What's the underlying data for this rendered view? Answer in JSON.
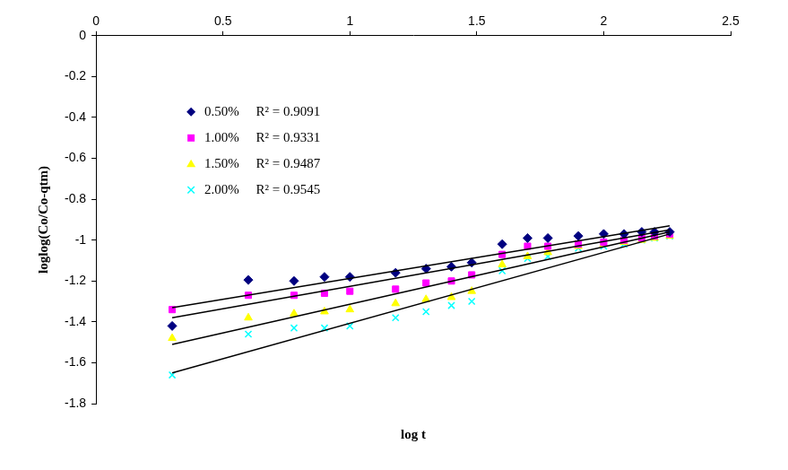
{
  "chart_data": {
    "type": "scatter",
    "x_label": "log t",
    "y_label": "loglog(Co/Co-qtm)",
    "x": [
      0.3,
      0.6,
      0.78,
      0.9,
      1.0,
      1.18,
      1.3,
      1.4,
      1.48,
      1.6,
      1.7,
      1.78,
      1.9,
      2.0,
      2.08,
      2.15,
      2.2,
      2.26
    ],
    "series": [
      {
        "name": "0.50%     R² = 0.9091",
        "color": "#000080",
        "marker": "diamond",
        "values": [
          -1.42,
          -1.195,
          -1.2,
          -1.18,
          -1.18,
          -1.16,
          -1.14,
          -1.13,
          -1.11,
          -1.02,
          -0.99,
          -0.99,
          -0.98,
          -0.97,
          -0.97,
          -0.96,
          -0.96,
          -0.96
        ],
        "trendline": {
          "x": [
            0.3,
            2.26
          ],
          "values": [
            -1.33,
            -0.93
          ]
        }
      },
      {
        "name": "1.00%     R² = 0.9331",
        "color": "#ff00ff",
        "marker": "square",
        "values": [
          -1.34,
          -1.27,
          -1.27,
          -1.26,
          -1.25,
          -1.24,
          -1.21,
          -1.2,
          -1.17,
          -1.07,
          -1.03,
          -1.03,
          -1.02,
          -1.01,
          -1.0,
          -0.99,
          -0.98,
          -0.97
        ],
        "trendline": {
          "x": [
            0.3,
            2.26
          ],
          "values": [
            -1.38,
            -0.95
          ]
        }
      },
      {
        "name": "1.50%     R² = 0.9487",
        "color": "#ffff00",
        "marker": "triangle",
        "values": [
          -1.48,
          -1.38,
          -1.36,
          -1.35,
          -1.34,
          -1.31,
          -1.29,
          -1.28,
          -1.25,
          -1.12,
          -1.08,
          -1.06,
          -1.03,
          -1.02,
          -1.01,
          -1.0,
          -0.99,
          -0.98
        ],
        "trendline": {
          "x": [
            0.3,
            2.26
          ],
          "values": [
            -1.51,
            -0.96
          ]
        }
      },
      {
        "name": "2.00%     R² = 0.9545",
        "color": "#00ffff",
        "marker": "x",
        "values": [
          -1.66,
          -1.46,
          -1.43,
          -1.43,
          -1.42,
          -1.38,
          -1.35,
          -1.32,
          -1.3,
          -1.15,
          -1.09,
          -1.08,
          -1.04,
          -1.03,
          -1.02,
          -1.0,
          -0.99,
          -0.98
        ],
        "trendline": {
          "x": [
            0.3,
            2.26
          ],
          "values": [
            -1.65,
            -0.97
          ]
        }
      }
    ],
    "xlim": [
      0,
      2.5
    ],
    "xticks": [
      0,
      0.5,
      1,
      1.5,
      2,
      2.5
    ],
    "ylim": [
      -1.8,
      0
    ],
    "yticks": [
      -1.8,
      -1.6,
      -1.4,
      -1.2,
      -1,
      -0.8,
      -0.6,
      -0.4,
      -0.2,
      0
    ],
    "grid": false,
    "legend": "upper left"
  }
}
